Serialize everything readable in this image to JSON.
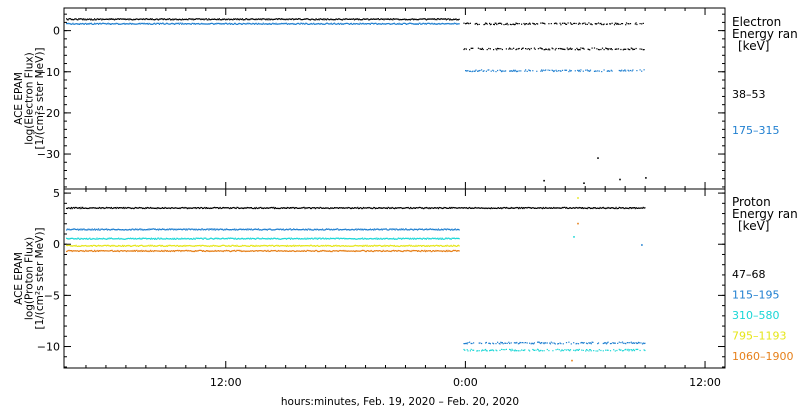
{
  "chart_data": {
    "type": "scatter",
    "xlabel": "hours:minutes, Feb. 19, 2020 – Feb. 20, 2020",
    "xlim": [
      3.9,
      37.0
    ],
    "x_ticks": [
      {
        "value": 12,
        "label": "12:00"
      },
      {
        "value": 24,
        "label": "0:00"
      },
      {
        "value": 36,
        "label": "12:00"
      }
    ],
    "panels": [
      {
        "id": "electron",
        "ylabel_lines": [
          "ACE EPAM",
          "log(Electron Flux)",
          "[1/(cm²s ster MeV)]"
        ],
        "ylim": [
          -38.5,
          5.5
        ],
        "y_ticks": [
          0,
          -10,
          -20,
          -30
        ],
        "y_tick_labels": [
          "0",
          "−10",
          "−20",
          "−30"
        ],
        "legend": {
          "heading_lines": [
            "Electron",
            "Energy ran",
            "[keV]"
          ],
          "entries": [
            {
              "label": "38–53",
              "color": "#000000"
            },
            {
              "label": "175–315",
              "color": "#1f7fd0"
            }
          ]
        },
        "series": [
          {
            "color": "#000000",
            "segments": [
              [
                4.0,
                23.7,
                2.9
              ],
              [
                23.9,
                33.0,
                1.8
              ],
              [
                23.9,
                33.0,
                -4.3
              ]
            ],
            "points": [
              [
                27.9,
                -36.3
              ],
              [
                29.9,
                -36.9
              ],
              [
                30.6,
                -30.8
              ],
              [
                31.7,
                -36.0
              ],
              [
                33.0,
                -35.6
              ]
            ]
          },
          {
            "color": "#1f7fd0",
            "segments": [
              [
                4.0,
                23.7,
                1.8
              ],
              [
                23.9,
                33.0,
                -9.6
              ]
            ],
            "points": []
          }
        ]
      },
      {
        "id": "proton",
        "ylabel_lines": [
          "ACE EPAM",
          "log(Proton Flux)",
          "[1/(cm²s ster MeV)]"
        ],
        "ylim": [
          -12.1,
          5.4
        ],
        "y_ticks": [
          5,
          0,
          -5,
          -10
        ],
        "y_tick_labels": [
          "5",
          "0",
          "−5",
          "−10"
        ],
        "legend": {
          "heading_lines": [
            "Proton",
            "Energy ran",
            "[keV]"
          ],
          "entries": [
            {
              "label": "47–68",
              "color": "#000000"
            },
            {
              "label": "115–195",
              "color": "#1f7fd0"
            },
            {
              "label": "310–580",
              "color": "#1ad6d6"
            },
            {
              "label": "795–1193",
              "color": "#e6e61a"
            },
            {
              "label": "1060–1900",
              "color": "#e6801a"
            }
          ]
        },
        "series": [
          {
            "color": "#000000",
            "segments": [
              [
                4.0,
                33.0,
                3.6
              ]
            ],
            "points": []
          },
          {
            "color": "#1f7fd0",
            "segments": [
              [
                4.0,
                23.7,
                1.5
              ],
              [
                23.9,
                33.0,
                -9.6
              ]
            ],
            "points": [
              [
                32.8,
                0.0
              ]
            ]
          },
          {
            "color": "#1ad6d6",
            "segments": [
              [
                4.0,
                23.7,
                0.6
              ],
              [
                23.9,
                33.0,
                -10.3
              ]
            ],
            "points": [
              [
                29.4,
                0.8
              ]
            ]
          },
          {
            "color": "#e6e61a",
            "segments": [
              [
                4.0,
                23.7,
                -0.1
              ]
            ],
            "points": [
              [
                29.6,
                4.6
              ]
            ]
          },
          {
            "color": "#e6801a",
            "segments": [
              [
                4.0,
                23.7,
                -0.6
              ]
            ],
            "points": [
              [
                29.6,
                2.1
              ],
              [
                29.3,
                -11.3
              ]
            ]
          }
        ]
      }
    ]
  }
}
